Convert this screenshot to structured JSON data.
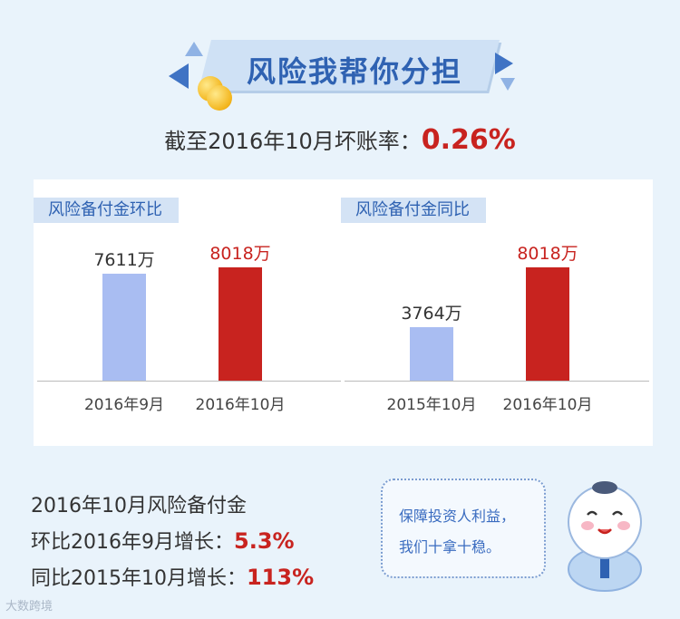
{
  "banner": {
    "title": "风险我帮你分担"
  },
  "headline": {
    "prefix": "截至2016年10月坏账率：",
    "value": "0.26%"
  },
  "chart_data": [
    {
      "type": "bar",
      "title": "风险备付金环比",
      "categories": [
        "2016年9月",
        "2016年10月"
      ],
      "values": [
        7611,
        8018
      ],
      "value_labels": [
        "7611万",
        "8018万"
      ],
      "colors": [
        "#a9bdf2",
        "#c8231f"
      ],
      "ylim": [
        0,
        9000
      ]
    },
    {
      "type": "bar",
      "title": "风险备付金同比",
      "categories": [
        "2015年10月",
        "2016年10月"
      ],
      "values": [
        3764,
        8018
      ],
      "value_labels": [
        "3764万",
        "8018万"
      ],
      "colors": [
        "#a9bdf2",
        "#c8231f"
      ],
      "ylim": [
        0,
        9000
      ]
    }
  ],
  "summary": {
    "line1": "2016年10月风险备付金",
    "line2_prefix": "环比2016年9月增长：",
    "line2_value": "5.3%",
    "line3_prefix": "同比2015年10月增长：",
    "line3_value": "113%"
  },
  "note": {
    "line1": "保障投资人利益，",
    "line2": "我们十拿十稳。"
  },
  "watermark": "大数跨境"
}
